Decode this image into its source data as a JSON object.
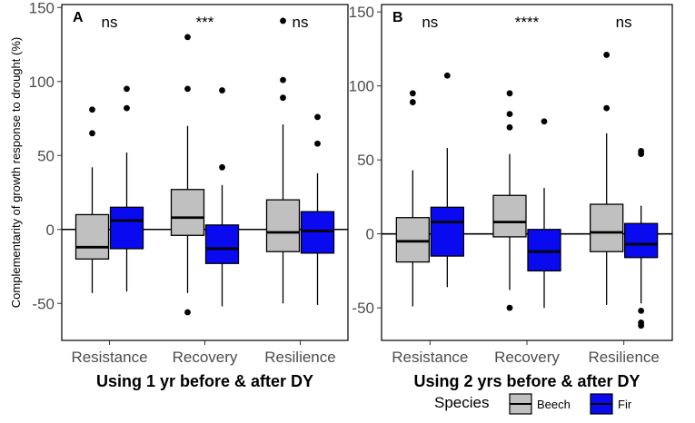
{
  "figure": {
    "ylabel": "Complementarity of growth response to drought (%)",
    "legend": {
      "title": "Species",
      "entries": [
        {
          "name": "Beech",
          "color": "#c0c0c0"
        },
        {
          "name": "Fir",
          "color": "#0a0af0"
        }
      ]
    }
  },
  "chart_data": [
    {
      "type": "boxplot",
      "panel_label": "A",
      "xlabel": "Using 1 yr before & after DY",
      "ylabel": "Complementarity of growth response to drought (%)",
      "ylim": [
        -75,
        152
      ],
      "yticks": [
        -50,
        0,
        50,
        100,
        150
      ],
      "reference_line": 0,
      "categories": [
        "Resistance",
        "Recovery",
        "Resilience"
      ],
      "significance": [
        "ns",
        "***",
        "ns"
      ],
      "series": [
        {
          "name": "Beech",
          "color": "#c0c0c0",
          "boxes": [
            {
              "q1": -20,
              "median": -12,
              "q3": 10,
              "whisker_low": -43,
              "whisker_high": 42,
              "outliers": [
                81,
                65
              ]
            },
            {
              "q1": -4,
              "median": 8,
              "q3": 27,
              "whisker_low": -43,
              "whisker_high": 70,
              "outliers": [
                130,
                95,
                -56
              ]
            },
            {
              "q1": -15,
              "median": -2,
              "q3": 20,
              "whisker_low": -50,
              "whisker_high": 71,
              "outliers": [
                141,
                101,
                89
              ]
            }
          ]
        },
        {
          "name": "Fir",
          "color": "#0a0af0",
          "boxes": [
            {
              "q1": -13,
              "median": 6,
              "q3": 15,
              "whisker_low": -42,
              "whisker_high": 52,
              "outliers": [
                95,
                82
              ]
            },
            {
              "q1": -23,
              "median": -13,
              "q3": 3,
              "whisker_low": -52,
              "whisker_high": 30,
              "outliers": [
                94,
                42
              ]
            },
            {
              "q1": -16,
              "median": -1,
              "q3": 12,
              "whisker_low": -51,
              "whisker_high": 38,
              "outliers": [
                76,
                58
              ]
            }
          ]
        }
      ]
    },
    {
      "type": "boxplot",
      "panel_label": "B",
      "xlabel": "Using 2 yrs before & after DY",
      "ylabel": "",
      "ylim": [
        -72,
        155
      ],
      "yticks": [
        -50,
        0,
        50,
        100,
        150
      ],
      "reference_line": 0,
      "categories": [
        "Resistance",
        "Recovery",
        "Resilience"
      ],
      "significance": [
        "ns",
        "****",
        "ns"
      ],
      "series": [
        {
          "name": "Beech",
          "color": "#c0c0c0",
          "boxes": [
            {
              "q1": -19,
              "median": -5,
              "q3": 11,
              "whisker_low": -49,
              "whisker_high": 43,
              "outliers": [
                95,
                89
              ]
            },
            {
              "q1": -2,
              "median": 8,
              "q3": 26,
              "whisker_low": -38,
              "whisker_high": 54,
              "outliers": [
                95,
                81,
                72,
                -50
              ]
            },
            {
              "q1": -12,
              "median": 1,
              "q3": 20,
              "whisker_low": -48,
              "whisker_high": 68,
              "outliers": [
                121,
                85
              ]
            }
          ]
        },
        {
          "name": "Fir",
          "color": "#0a0af0",
          "boxes": [
            {
              "q1": -15,
              "median": 8,
              "q3": 18,
              "whisker_low": -36,
              "whisker_high": 58,
              "outliers": [
                107
              ]
            },
            {
              "q1": -25,
              "median": -12,
              "q3": 3,
              "whisker_low": -50,
              "whisker_high": 31,
              "outliers": [
                76
              ]
            },
            {
              "q1": -16,
              "median": -7,
              "q3": 7,
              "whisker_low": -47,
              "whisker_high": 19,
              "outliers": [
                56,
                54,
                -52,
                -60,
                -62
              ]
            }
          ]
        }
      ]
    }
  ]
}
